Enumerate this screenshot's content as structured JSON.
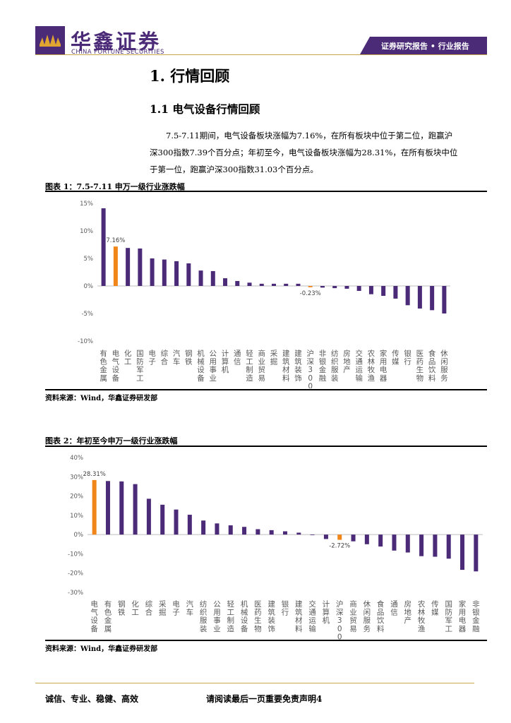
{
  "header": {
    "brand_cn": "华鑫证券",
    "brand_en": "CHINA FORTUNE SECURITIES",
    "tag": "证券研究报告 • 行业报告",
    "brand_color": "#4b2a78",
    "gold_color": "#c7a94c"
  },
  "section": {
    "title": "1.  行情回顾",
    "subtitle": "1.1 电气设备行情回顾"
  },
  "paragraph": {
    "line1": "7.5-7.11期间，电气设备板块涨幅为7.16%，在所有板块中位于第二位，跑赢沪",
    "line2": "深300指数7.39个百分点；年初至今，电气设备板块涨幅为28.31%，在所有板块中位",
    "line3": "于第一位，跑赢沪深300指数31.03个百分点。"
  },
  "figure1": {
    "title": "图表 1：7.5-7.11 申万一级行业涨跌幅",
    "source": "资料来源：Wind，华鑫证券研发部"
  },
  "figure2": {
    "title": "图表 2：年初至今申万一级行业涨跌幅",
    "source": "资料来源：Wind，华鑫证券研发部"
  },
  "footer": {
    "left": "诚信、专业、稳健、高效",
    "right": "请阅读最后一页重要免责声明4"
  },
  "chart_data": [
    {
      "type": "bar",
      "title": "7.5-7.11 申万一级行业涨跌幅",
      "categories": [
        "有色金属",
        "电气设备",
        "化工",
        "国防军工",
        "电子",
        "综合",
        "汽车",
        "钢铁",
        "机械设备",
        "公用事业",
        "计算机",
        "通信",
        "轻工制造",
        "商业贸易",
        "采掘",
        "建筑材料",
        "建筑装饰",
        "沪深300",
        "非银金融",
        "纺织服装",
        "房地产",
        "交通运输",
        "农林牧渔",
        "家用电器",
        "传媒",
        "银行",
        "医药生物",
        "食品饮料",
        "休闲服务"
      ],
      "values": [
        14.1,
        7.16,
        6.9,
        6.8,
        5.0,
        4.8,
        4.5,
        4.1,
        2.8,
        2.7,
        1.4,
        0.9,
        0.6,
        0.4,
        0.4,
        0.4,
        0.4,
        -0.23,
        -0.3,
        -0.4,
        -0.5,
        -0.9,
        -1.5,
        -1.8,
        -2.3,
        -3.5,
        -4.1,
        -4.4,
        -5.0
      ],
      "highlight": {
        "电气设备": "7.16%",
        "沪深300": "-0.23%"
      },
      "ylim": [
        -10,
        15
      ],
      "yticks": [
        "-10%",
        "-5%",
        "0%",
        "5%",
        "10%",
        "15%"
      ],
      "series_color": "#4b2a78",
      "highlight_color": "#f08519"
    },
    {
      "type": "bar",
      "title": "年初至今申万一级行业涨跌幅",
      "categories": [
        "电气设备",
        "有色金属",
        "钢铁",
        "化工",
        "综合",
        "采掘",
        "电子",
        "汽车",
        "纺织服装",
        "公用事业",
        "轻工制造",
        "机械设备",
        "医药生物",
        "建筑装饰",
        "银行",
        "建筑材料",
        "交通运输",
        "计算机",
        "沪深300",
        "商业贸易",
        "休闲服务",
        "食品饮料",
        "通信",
        "房地产",
        "农林牧渔",
        "传媒",
        "国防军工",
        "家用电器",
        "非银金融"
      ],
      "values": [
        28.31,
        27.8,
        27.6,
        26.2,
        18.6,
        15.5,
        13.0,
        10.3,
        7.3,
        5.8,
        4.8,
        4.0,
        2.8,
        2.3,
        1.7,
        1.0,
        0.0,
        -2.3,
        -2.72,
        -3.5,
        -5.0,
        -6.2,
        -8.3,
        -9.3,
        -11.2,
        -11.5,
        -12.5,
        -18.3,
        -19.1
      ],
      "highlight": {
        "电气设备": "28.31%",
        "沪深300": "-2.72%"
      },
      "ylim": [
        -30,
        40
      ],
      "yticks": [
        "-30%",
        "-20%",
        "-10%",
        "0%",
        "10%",
        "20%",
        "30%",
        "40%"
      ],
      "series_color": "#4b2a78",
      "highlight_color": "#f08519"
    }
  ]
}
